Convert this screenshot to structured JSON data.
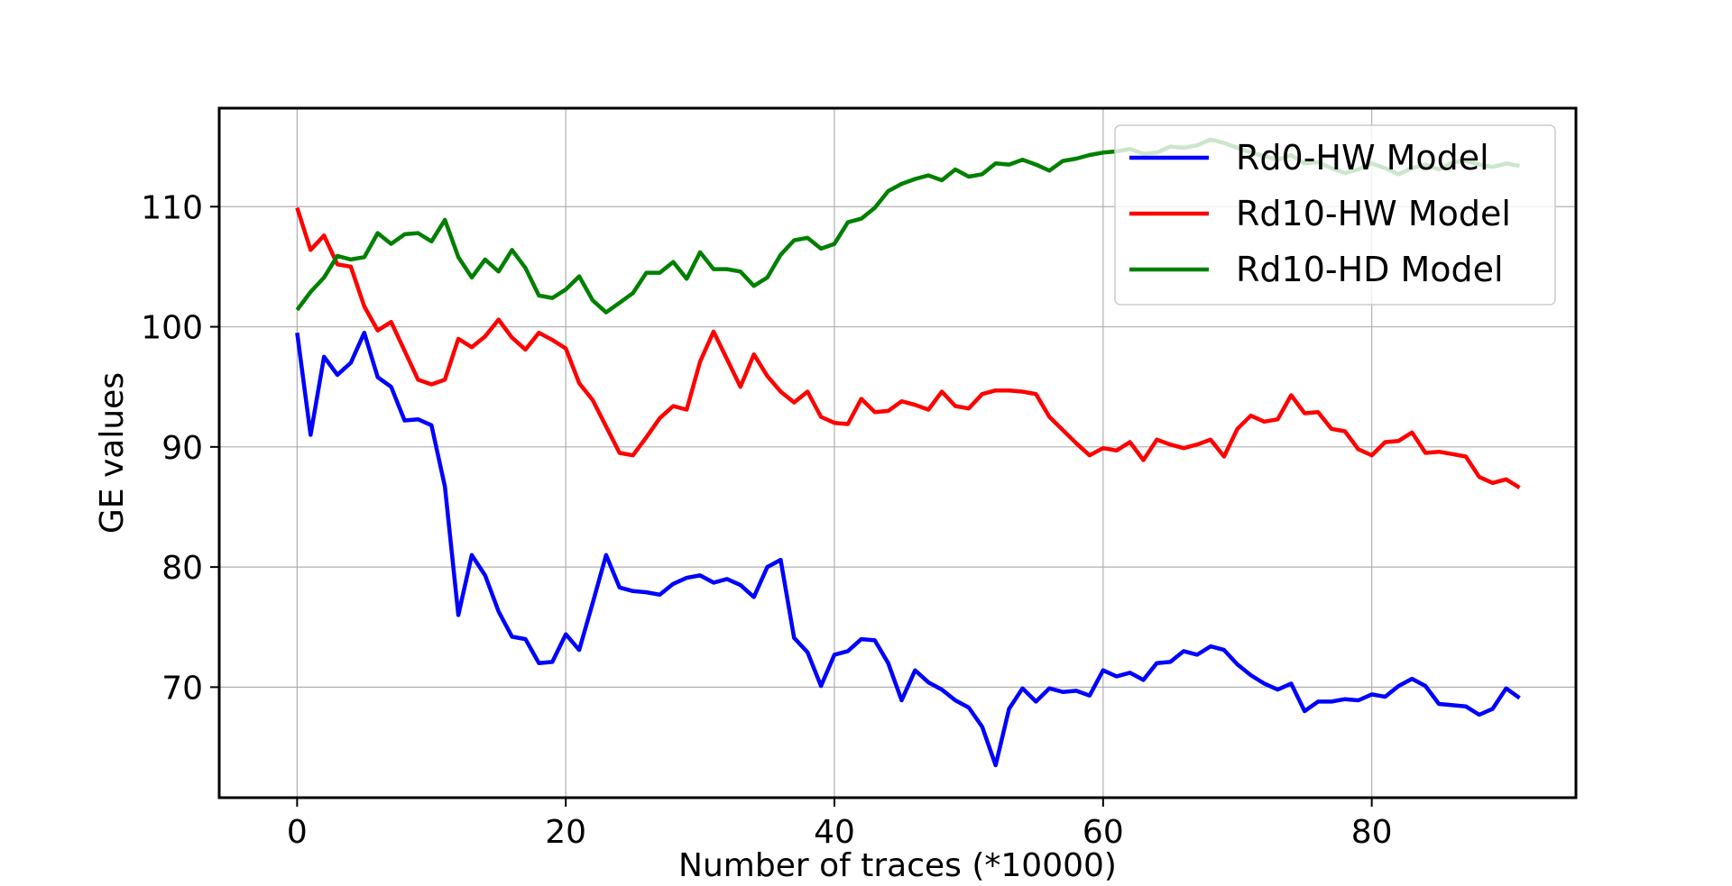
{
  "chart_data": {
    "type": "line",
    "title": "",
    "xlabel": "Number of traces (*10000)",
    "ylabel": "GE values",
    "xlim": [
      -5.8,
      95.2
    ],
    "ylim": [
      60.8,
      118.2
    ],
    "xticks": [
      0,
      20,
      40,
      60,
      80
    ],
    "yticks": [
      70,
      80,
      90,
      100,
      110
    ],
    "grid": true,
    "legend_position": "top-right",
    "x": [
      0,
      1,
      2,
      3,
      4,
      5,
      6,
      7,
      8,
      9,
      10,
      11,
      12,
      13,
      14,
      15,
      16,
      17,
      18,
      19,
      20,
      21,
      22,
      23,
      24,
      25,
      26,
      27,
      28,
      29,
      30,
      31,
      32,
      33,
      34,
      35,
      36,
      37,
      38,
      39,
      40,
      41,
      42,
      43,
      44,
      45,
      46,
      47,
      48,
      49,
      50,
      51,
      52,
      53,
      54,
      55,
      56,
      57,
      58,
      59,
      60,
      61,
      62,
      63,
      64,
      65,
      66,
      67,
      68,
      69,
      70,
      71,
      72,
      73,
      74,
      75,
      76,
      77,
      78,
      79,
      80,
      81,
      82,
      83,
      84,
      85,
      86,
      87,
      88,
      89,
      90,
      91
    ],
    "series": [
      {
        "name": "Rd0-HW Model",
        "color": "#0000ff",
        "values": [
          99.5,
          91.0,
          97.5,
          96.0,
          97.0,
          99.5,
          95.8,
          95.0,
          92.2,
          92.3,
          91.8,
          86.7,
          76.0,
          81.0,
          79.3,
          76.3,
          74.2,
          74.0,
          72.0,
          72.1,
          74.4,
          73.1,
          77.0,
          81.0,
          78.3,
          78.0,
          77.9,
          77.7,
          78.6,
          79.1,
          79.3,
          78.7,
          79.0,
          78.5,
          77.5,
          80.0,
          80.6,
          74.1,
          72.9,
          70.1,
          72.7,
          73.0,
          74.0,
          73.9,
          72.0,
          68.9,
          71.4,
          70.4,
          69.8,
          68.9,
          68.3,
          66.7,
          63.5,
          68.2,
          69.9,
          68.8,
          69.9,
          69.6,
          69.7,
          69.3,
          71.4,
          70.9,
          71.2,
          70.6,
          72.0,
          72.1,
          73.0,
          72.7,
          73.4,
          73.1,
          71.9,
          71.0,
          70.3,
          69.8,
          70.3,
          68.0,
          68.8,
          68.8,
          69.0,
          68.9,
          69.4,
          69.2,
          70.1,
          70.7,
          70.1,
          68.6,
          68.5,
          68.4,
          67.7,
          68.2,
          69.9,
          69.1
        ]
      },
      {
        "name": "Rd10-HW Model",
        "color": "#ff0000",
        "values": [
          109.9,
          106.4,
          107.6,
          105.2,
          105.0,
          101.7,
          99.7,
          100.4,
          98.0,
          95.6,
          95.2,
          95.6,
          99.0,
          98.3,
          99.2,
          100.6,
          99.1,
          98.1,
          99.5,
          98.9,
          98.2,
          95.3,
          93.9,
          91.7,
          89.5,
          89.3,
          90.8,
          92.4,
          93.4,
          93.1,
          97.1,
          99.6,
          97.3,
          95.0,
          97.7,
          95.9,
          94.6,
          93.7,
          94.6,
          92.5,
          92.0,
          91.9,
          94.0,
          92.9,
          93.0,
          93.8,
          93.5,
          93.1,
          94.6,
          93.4,
          93.2,
          94.4,
          94.7,
          94.7,
          94.6,
          94.4,
          92.5,
          91.4,
          90.3,
          89.3,
          89.9,
          89.7,
          90.4,
          88.9,
          90.6,
          90.2,
          89.9,
          90.2,
          90.6,
          89.2,
          91.5,
          92.6,
          92.1,
          92.3,
          94.3,
          92.8,
          92.9,
          91.5,
          91.3,
          89.8,
          89.3,
          90.4,
          90.5,
          91.2,
          89.5,
          89.6,
          89.4,
          89.2,
          87.5,
          87.0,
          87.3,
          86.6
        ]
      },
      {
        "name": "Rd10-HD Model",
        "color": "#008000",
        "values": [
          101.4,
          102.9,
          104.1,
          105.9,
          105.6,
          105.8,
          107.8,
          106.9,
          107.7,
          107.8,
          107.1,
          108.9,
          105.8,
          104.1,
          105.6,
          104.6,
          106.4,
          104.9,
          102.6,
          102.4,
          103.1,
          104.2,
          102.2,
          101.2,
          102.0,
          102.8,
          104.5,
          104.5,
          105.4,
          104.0,
          106.2,
          104.8,
          104.8,
          104.6,
          103.4,
          104.1,
          106.0,
          107.2,
          107.4,
          106.5,
          106.9,
          108.7,
          109.0,
          109.9,
          111.3,
          111.9,
          112.3,
          112.6,
          112.2,
          113.1,
          112.5,
          112.7,
          113.6,
          113.5,
          113.9,
          113.5,
          113.0,
          113.8,
          114.0,
          114.3,
          114.5,
          114.6,
          114.8,
          114.4,
          114.5,
          115.0,
          114.9,
          115.1,
          115.6,
          115.3,
          114.9,
          114.5,
          114.2,
          113.9,
          114.3,
          113.6,
          113.7,
          113.2,
          112.8,
          113.1,
          113.6,
          113.2,
          112.7,
          113.2,
          113.5,
          113.1,
          113.7,
          113.8,
          113.5,
          113.3,
          113.6,
          113.4
        ]
      }
    ]
  }
}
